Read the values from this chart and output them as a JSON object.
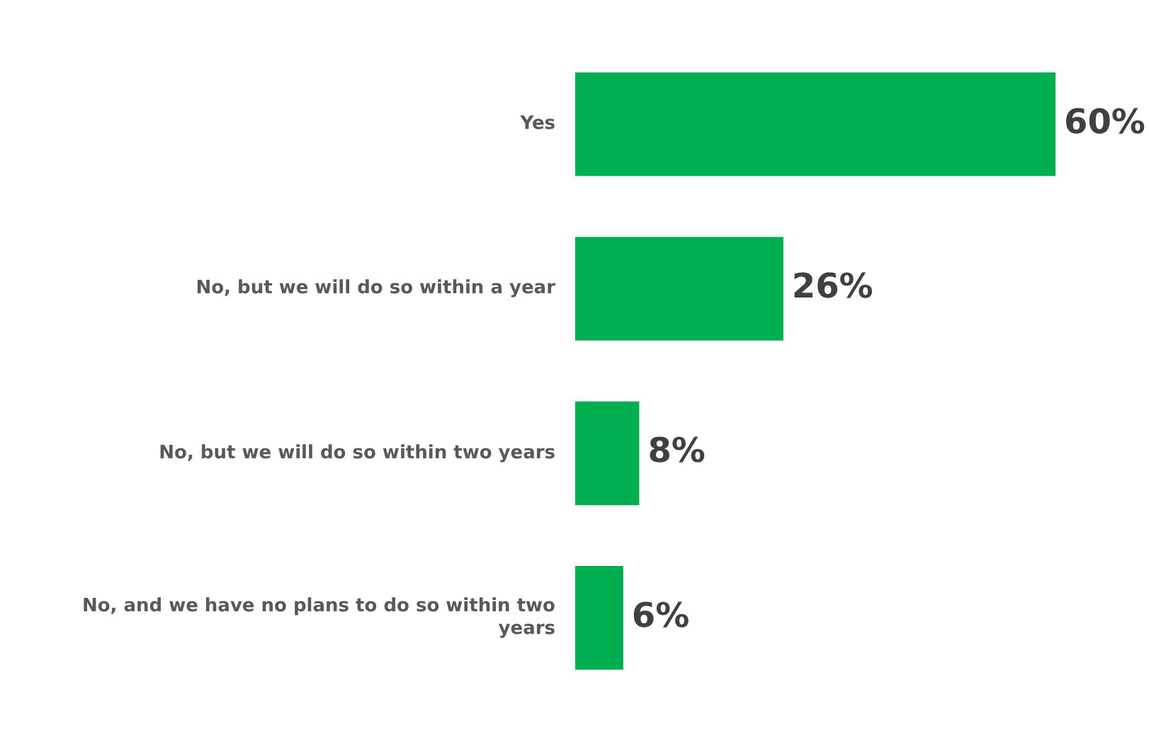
{
  "chart_data": {
    "type": "bar",
    "orientation": "horizontal",
    "categories": [
      "Yes",
      "No, but we will do so within a year",
      "No, but we will do so within two years",
      "No, and we have no plans to do so within two years"
    ],
    "values": [
      60,
      26,
      8,
      6
    ],
    "value_labels": [
      "60%",
      "26%",
      "8%",
      "6%"
    ],
    "color": "#00b050",
    "xlim": [
      0,
      60
    ],
    "tick_labels": "y"
  }
}
